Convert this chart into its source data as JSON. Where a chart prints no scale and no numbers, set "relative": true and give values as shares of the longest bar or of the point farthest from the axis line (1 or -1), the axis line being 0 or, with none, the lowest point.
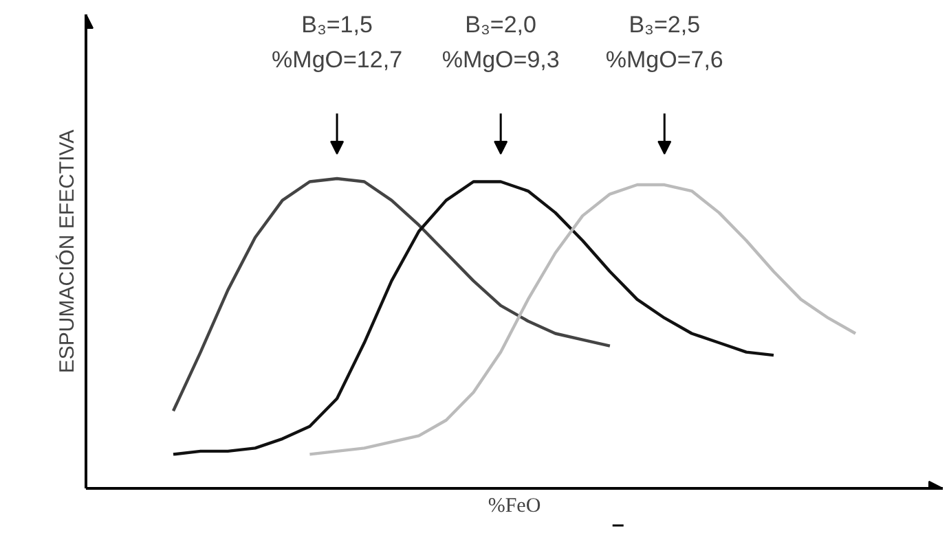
{
  "chart_data": {
    "type": "line",
    "relative": true,
    "xlabel": "%FeO",
    "ylabel": "ESPUMACIÓN EFECTIVA",
    "categories": [
      null,
      null,
      null,
      null,
      null,
      null,
      null,
      null,
      null,
      null,
      null,
      null,
      null,
      null,
      null,
      null,
      null,
      null,
      null,
      null,
      null,
      null,
      null,
      null,
      null,
      null
    ],
    "series": [
      {
        "color": "#444444",
        "values": [
          0.25,
          0.44,
          0.64,
          0.81,
          0.93,
          0.99,
          1,
          0.99,
          0.93,
          0.85,
          0.76,
          0.67,
          0.59,
          0.54,
          0.5,
          0.48,
          0.46,
          null,
          null,
          null,
          null,
          null,
          null,
          null,
          null,
          null
        ]
      },
      {
        "color": "#111111",
        "values": [
          0.11,
          0.12,
          0.12,
          0.13,
          0.16,
          0.2,
          0.29,
          0.47,
          0.67,
          0.83,
          0.93,
          0.99,
          0.99,
          0.96,
          0.89,
          0.8,
          0.7,
          0.61,
          0.55,
          0.5,
          0.47,
          0.44,
          0.43,
          null,
          null,
          null
        ]
      },
      {
        "color": "#bbbbbb",
        "values": [
          null,
          null,
          null,
          null,
          null,
          0.11,
          0.12,
          0.13,
          0.15,
          0.17,
          0.22,
          0.31,
          0.44,
          0.61,
          0.76,
          0.88,
          0.95,
          0.98,
          0.98,
          0.96,
          0.89,
          0.8,
          0.7,
          0.61,
          0.55,
          0.5
        ]
      }
    ],
    "annotations": [
      "B₃=1,5\n%MgO=12,7",
      "B₃=2,0\n%MgO=9,3",
      "B₃=2,5\n%MgO=7,6"
    ],
    "marker": "none",
    "line_style": "solid"
  }
}
